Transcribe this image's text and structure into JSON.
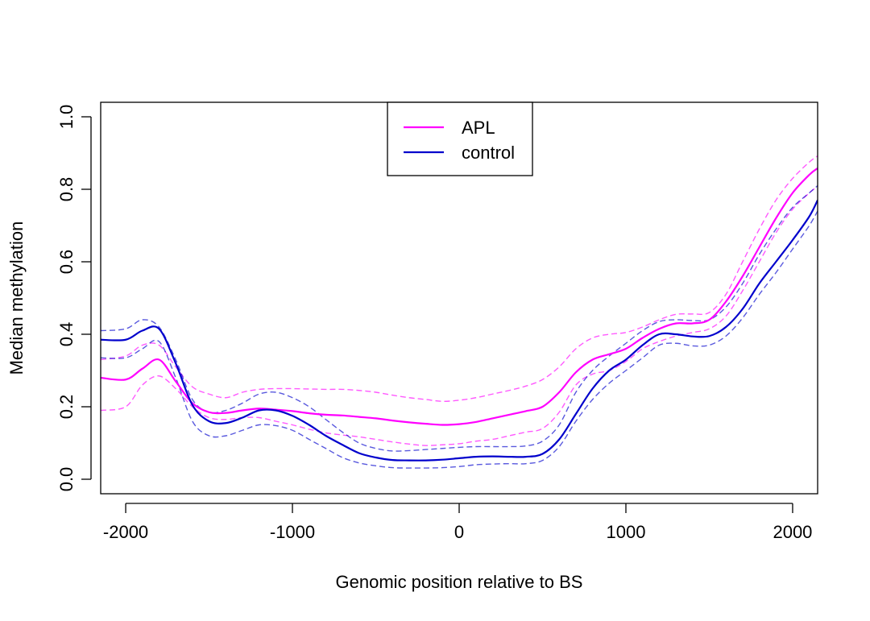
{
  "chart_data": {
    "type": "line",
    "title": "",
    "xlabel": "Genomic position relative to BS",
    "ylabel": "Median methylation",
    "xlim": [
      -2150,
      2150
    ],
    "ylim": [
      -0.04,
      1.04
    ],
    "xticks": [
      -2000,
      -1000,
      0,
      1000,
      2000
    ],
    "xtick_labels": [
      "-2000",
      "-1000",
      "0",
      "1000",
      "2000"
    ],
    "yticks": [
      0.0,
      0.2,
      0.4,
      0.6,
      0.8,
      1.0
    ],
    "ytick_labels": [
      "0.0",
      "0.2",
      "0.4",
      "0.6",
      "0.8",
      "1.0"
    ],
    "grid": false,
    "legend": {
      "position": "top-center",
      "entries": [
        "APL",
        "control"
      ]
    },
    "x": [
      -2150,
      -2000,
      -1900,
      -1800,
      -1700,
      -1600,
      -1500,
      -1400,
      -1300,
      -1200,
      -1100,
      -1000,
      -900,
      -800,
      -700,
      -600,
      -500,
      -400,
      -300,
      -200,
      -100,
      0,
      100,
      200,
      300,
      400,
      500,
      600,
      700,
      800,
      900,
      1000,
      1100,
      1200,
      1300,
      1400,
      1500,
      1600,
      1700,
      1800,
      1900,
      2000,
      2100,
      2150
    ],
    "series": [
      {
        "name": "APL",
        "color": "#ff00ff",
        "values": [
          0.28,
          0.275,
          0.305,
          0.33,
          0.27,
          0.21,
          0.185,
          0.183,
          0.19,
          0.195,
          0.192,
          0.188,
          0.182,
          0.178,
          0.176,
          0.172,
          0.168,
          0.162,
          0.157,
          0.153,
          0.15,
          0.152,
          0.158,
          0.168,
          0.178,
          0.188,
          0.2,
          0.24,
          0.295,
          0.33,
          0.345,
          0.36,
          0.39,
          0.415,
          0.43,
          0.43,
          0.44,
          0.49,
          0.56,
          0.64,
          0.72,
          0.79,
          0.84,
          0.858
        ],
        "lower": [
          0.19,
          0.2,
          0.26,
          0.285,
          0.25,
          0.2,
          0.17,
          0.165,
          0.17,
          0.17,
          0.16,
          0.15,
          0.138,
          0.128,
          0.122,
          0.117,
          0.11,
          0.103,
          0.097,
          0.093,
          0.095,
          0.098,
          0.105,
          0.11,
          0.12,
          0.13,
          0.14,
          0.185,
          0.26,
          0.29,
          0.3,
          0.325,
          0.36,
          0.38,
          0.395,
          0.405,
          0.415,
          0.45,
          0.52,
          0.6,
          0.68,
          0.745,
          0.79,
          0.808
        ],
        "upper": [
          0.33,
          0.34,
          0.37,
          0.37,
          0.31,
          0.255,
          0.235,
          0.225,
          0.24,
          0.248,
          0.25,
          0.25,
          0.249,
          0.248,
          0.248,
          0.245,
          0.24,
          0.232,
          0.225,
          0.22,
          0.215,
          0.218,
          0.225,
          0.235,
          0.245,
          0.257,
          0.275,
          0.31,
          0.36,
          0.39,
          0.4,
          0.405,
          0.42,
          0.44,
          0.455,
          0.456,
          0.46,
          0.51,
          0.6,
          0.69,
          0.77,
          0.83,
          0.875,
          0.892
        ]
      },
      {
        "name": "control",
        "color": "#0000cc",
        "values": [
          0.385,
          0.385,
          0.41,
          0.415,
          0.32,
          0.205,
          0.16,
          0.155,
          0.17,
          0.19,
          0.19,
          0.175,
          0.15,
          0.12,
          0.095,
          0.072,
          0.06,
          0.053,
          0.052,
          0.052,
          0.054,
          0.058,
          0.062,
          0.063,
          0.062,
          0.062,
          0.07,
          0.11,
          0.18,
          0.25,
          0.3,
          0.33,
          0.37,
          0.4,
          0.4,
          0.394,
          0.395,
          0.42,
          0.47,
          0.54,
          0.6,
          0.66,
          0.725,
          0.77
        ],
        "lower": [
          0.335,
          0.335,
          0.36,
          0.38,
          0.28,
          0.16,
          0.12,
          0.12,
          0.135,
          0.15,
          0.148,
          0.135,
          0.11,
          0.085,
          0.06,
          0.045,
          0.037,
          0.032,
          0.031,
          0.031,
          0.032,
          0.035,
          0.04,
          0.042,
          0.043,
          0.043,
          0.052,
          0.09,
          0.16,
          0.22,
          0.265,
          0.3,
          0.335,
          0.37,
          0.375,
          0.368,
          0.37,
          0.395,
          0.445,
          0.51,
          0.57,
          0.635,
          0.7,
          0.74
        ],
        "upper": [
          0.41,
          0.415,
          0.44,
          0.42,
          0.33,
          0.22,
          0.185,
          0.19,
          0.21,
          0.235,
          0.24,
          0.225,
          0.2,
          0.165,
          0.13,
          0.1,
          0.085,
          0.078,
          0.079,
          0.082,
          0.085,
          0.088,
          0.09,
          0.09,
          0.09,
          0.092,
          0.105,
          0.15,
          0.24,
          0.3,
          0.34,
          0.375,
          0.41,
          0.435,
          0.44,
          0.438,
          0.44,
          0.475,
          0.54,
          0.62,
          0.69,
          0.75,
          0.79,
          0.81
        ]
      }
    ]
  }
}
